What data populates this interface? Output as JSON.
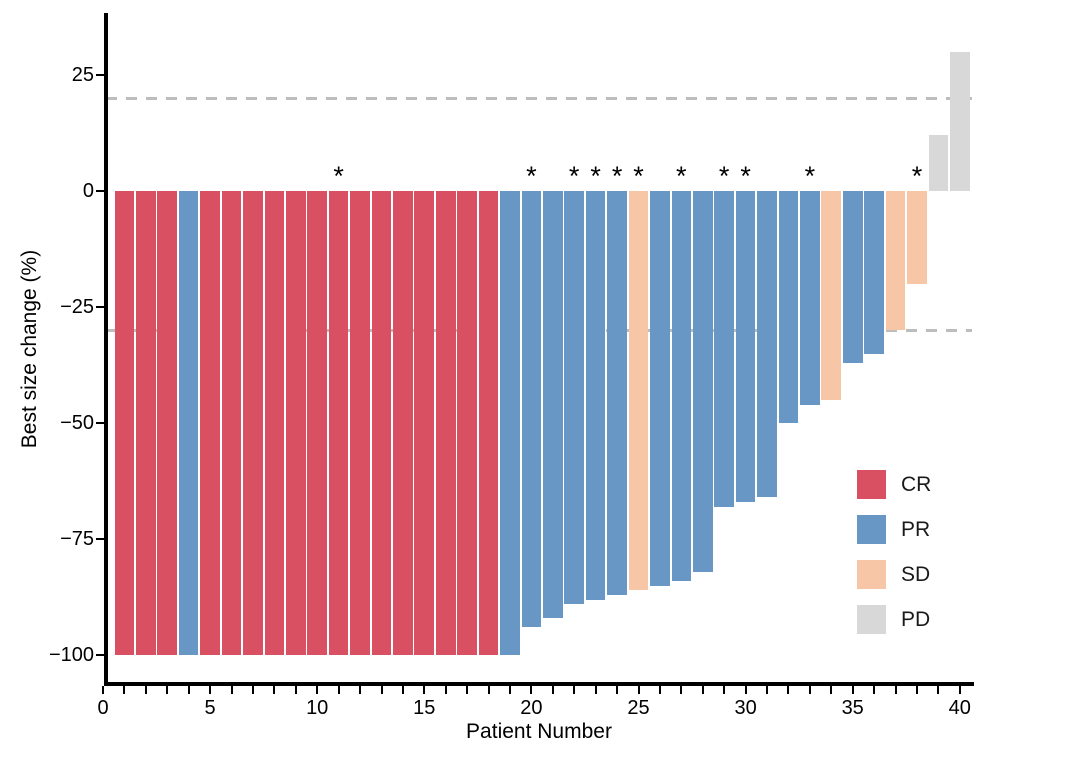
{
  "figure_title": "",
  "axes": {
    "x": {
      "label": "Patient Number",
      "major_tick_labels": [
        "0",
        "5",
        "10",
        "15",
        "20",
        "25",
        "30",
        "35",
        "40"
      ],
      "major_tick_values": [
        0,
        5,
        10,
        15,
        20,
        25,
        30,
        35,
        40
      ],
      "minor_tick_step": 1,
      "min": 0,
      "max": 40
    },
    "y": {
      "label": "Best size change (%)",
      "ticks": [
        {
          "value": 25,
          "label": "25"
        },
        {
          "value": 0,
          "label": "0"
        },
        {
          "value": -25,
          "label": "−25"
        },
        {
          "value": -50,
          "label": "−50"
        },
        {
          "value": -75,
          "label": "−75"
        },
        {
          "value": -100,
          "label": "−100"
        }
      ]
    }
  },
  "legend": {
    "position": "inside-right",
    "items": [
      {
        "label": "CR",
        "color": "#DA5063"
      },
      {
        "label": "PR",
        "color": "#6897C5"
      },
      {
        "label": "SD",
        "color": "#F7C6A7"
      },
      {
        "label": "PD",
        "color": "#D8D8D8"
      }
    ]
  },
  "chart_data": {
    "type": "bar",
    "title": "",
    "xlabel": "Patient Number",
    "ylabel": "Best size change (%)",
    "xlim": [
      0,
      41
    ],
    "ylim": [
      -106,
      38
    ],
    "grid": false,
    "annotation_glyph": "*",
    "reference_lines": [
      {
        "y": 20,
        "style": "dashed",
        "color": "#BDBDBD"
      },
      {
        "y": -30,
        "style": "dashed",
        "color": "#BDBDBD"
      }
    ],
    "x": [
      1,
      2,
      3,
      4,
      5,
      6,
      7,
      8,
      9,
      10,
      11,
      12,
      13,
      14,
      15,
      16,
      17,
      18,
      19,
      20,
      21,
      22,
      23,
      24,
      25,
      26,
      27,
      28,
      29,
      30,
      31,
      32,
      33,
      34,
      35,
      36,
      37,
      38,
      39,
      40
    ],
    "values": [
      -100,
      -100,
      -100,
      -100,
      -100,
      -100,
      -100,
      -100,
      -100,
      -100,
      -100,
      -100,
      -100,
      -100,
      -100,
      -100,
      -100,
      -100,
      -100,
      -94,
      -92,
      -89,
      -88,
      -87,
      -86,
      -85,
      -84,
      -82,
      -68,
      -67,
      -66,
      -50,
      -46,
      -45,
      -37,
      -35,
      -30,
      -20,
      12,
      30
    ],
    "response": [
      "CR",
      "CR",
      "CR",
      "PR",
      "CR",
      "CR",
      "CR",
      "CR",
      "CR",
      "CR",
      "CR",
      "CR",
      "CR",
      "CR",
      "CR",
      "CR",
      "CR",
      "CR",
      "PR",
      "PR",
      "PR",
      "PR",
      "PR",
      "PR",
      "SD",
      "PR",
      "PR",
      "PR",
      "PR",
      "PR",
      "PR",
      "PR",
      "PR",
      "SD",
      "PR",
      "PR",
      "SD",
      "SD",
      "PD",
      "PD"
    ],
    "starred_patients": [
      11,
      20,
      22,
      23,
      24,
      25,
      27,
      29,
      30,
      33,
      38
    ],
    "response_colors": {
      "CR": "#DA5063",
      "PR": "#6897C5",
      "SD": "#F7C6A7",
      "PD": "#D8D8D8"
    }
  }
}
